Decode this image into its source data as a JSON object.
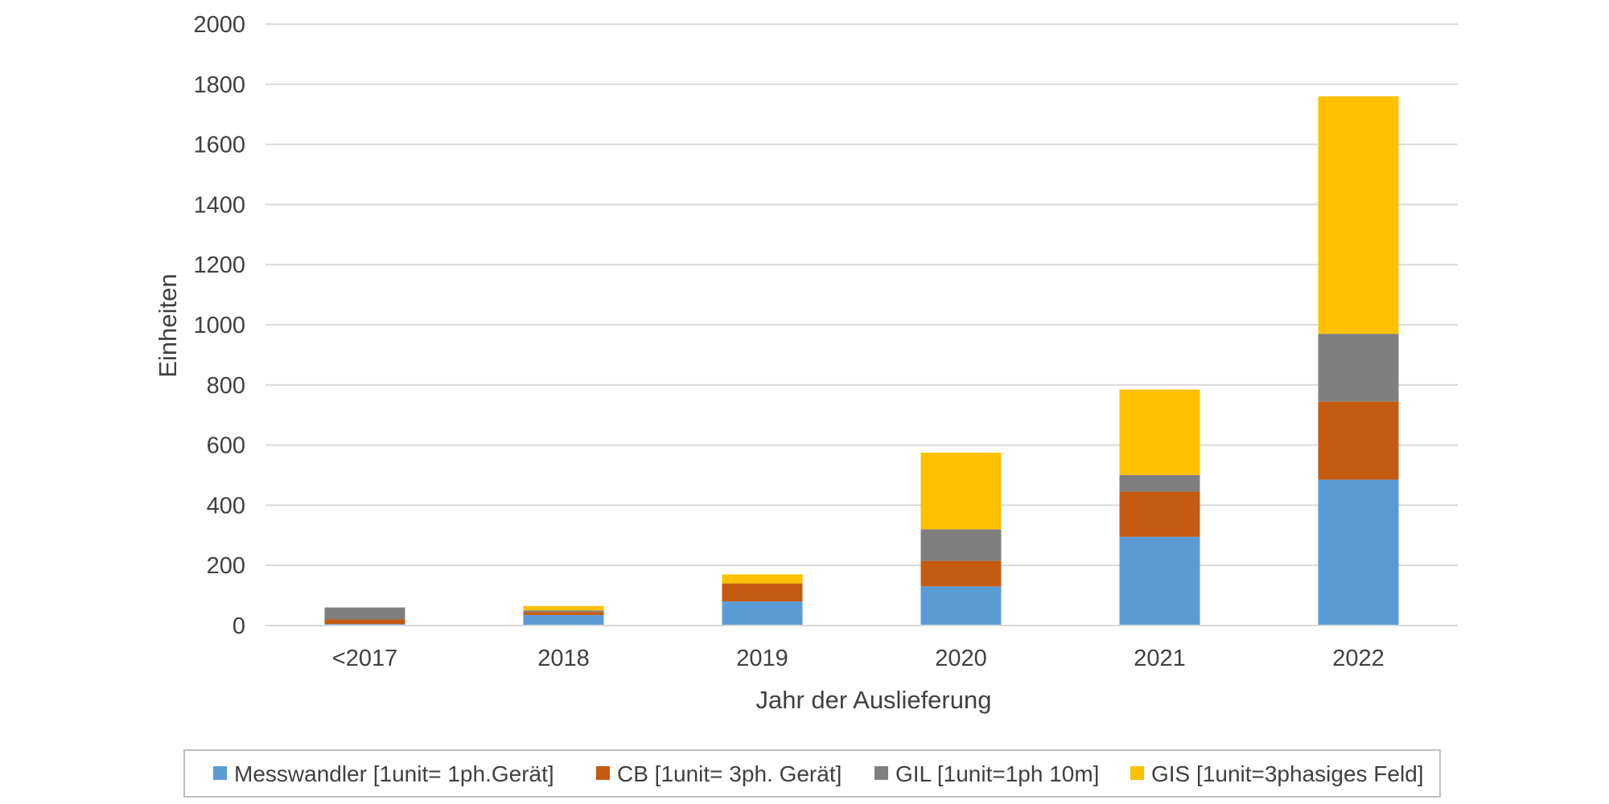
{
  "chart_data": {
    "type": "bar",
    "stacked": true,
    "categories": [
      "<2017",
      "2018",
      "2019",
      "2020",
      "2021",
      "2022"
    ],
    "series": [
      {
        "name": "Messwandler [1unit= 1ph.Gerät]",
        "color": "#5B9BD5",
        "values": [
          5,
          35,
          80,
          130,
          295,
          485
        ]
      },
      {
        "name": "CB [1unit= 3ph. Gerät]",
        "color": "#C55A11",
        "values": [
          15,
          10,
          60,
          85,
          150,
          260
        ]
      },
      {
        "name": "GIL [1unit=1ph 10m]",
        "color": "#7F7F7F",
        "values": [
          40,
          5,
          0,
          105,
          55,
          225
        ]
      },
      {
        "name": "GIS [1unit=3phasiges Feld]",
        "color": "#FFC000",
        "values": [
          0,
          15,
          30,
          255,
          285,
          790
        ]
      }
    ],
    "title": "",
    "xlabel": "Jahr der Auslieferung",
    "ylabel": "Einheiten",
    "ylim": [
      0,
      2000
    ],
    "yticks": [
      "0",
      "200",
      "400",
      "600",
      "800",
      "1000",
      "1200",
      "1400",
      "1600",
      "1800",
      "2000"
    ],
    "grid": true,
    "legend_position": "bottom"
  }
}
